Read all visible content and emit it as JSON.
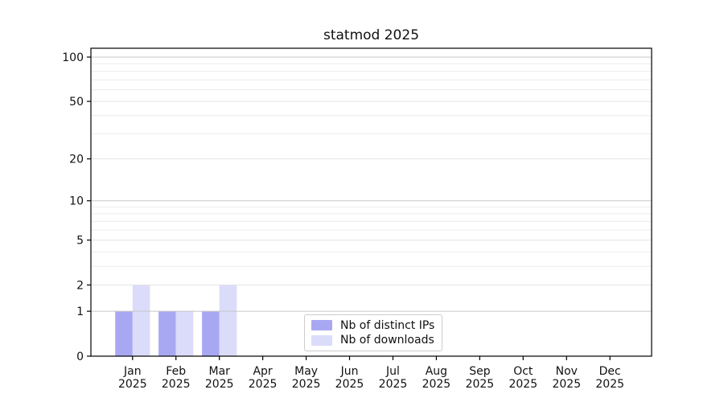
{
  "chart_data": {
    "type": "bar",
    "title": "statmod 2025",
    "categories": [
      "Jan",
      "Feb",
      "Mar",
      "Apr",
      "May",
      "Jun",
      "Jul",
      "Aug",
      "Sep",
      "Oct",
      "Nov",
      "Dec"
    ],
    "year": "2025",
    "series": [
      {
        "name": "Nb of distinct IPs",
        "color": "#a8a8f2",
        "values": [
          1,
          1,
          1,
          0,
          0,
          0,
          0,
          0,
          0,
          0,
          0,
          0
        ]
      },
      {
        "name": "Nb of downloads",
        "color": "#dbdbfa",
        "values": [
          2,
          1,
          2,
          0,
          0,
          0,
          0,
          0,
          0,
          0,
          0,
          0
        ]
      }
    ],
    "y_axis": {
      "scale": "log1p",
      "ticks": [
        0,
        1,
        2,
        5,
        10,
        20,
        50,
        100
      ],
      "minor_gridlines": [
        3,
        4,
        6,
        7,
        8,
        9,
        30,
        40,
        60,
        70,
        80,
        90
      ],
      "range": [
        0,
        100
      ]
    },
    "xlabel": "",
    "ylabel": "",
    "grid": true,
    "legend_position": "lower-center-inside"
  }
}
